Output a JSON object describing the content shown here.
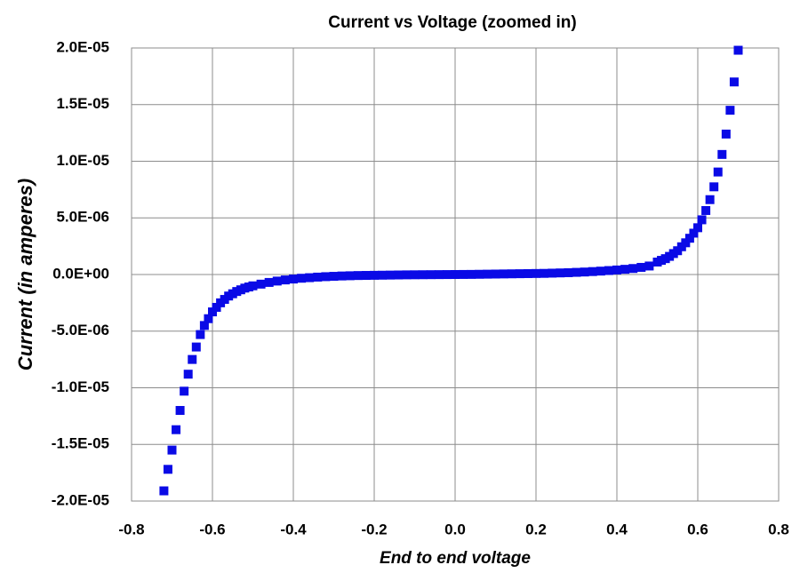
{
  "chart_data": {
    "type": "scatter",
    "title": "Current vs Voltage  (zoomed in)",
    "x_label": "End to end voltage",
    "y_label": "Current  (in amperes)",
    "grid": true,
    "xlim": [
      -0.8,
      0.8
    ],
    "ylim": [
      -2e-05,
      2e-05
    ],
    "xticks": [
      -0.8,
      -0.6,
      -0.4,
      -0.2,
      {
        "value": 0,
        "label": "0.0"
      },
      0.2,
      0.4,
      0.6,
      0.8
    ],
    "yticks": [
      {
        "value": -2e-05,
        "label": "-2.0E-05"
      },
      {
        "value": -1.5e-05,
        "label": "-1.5E-05"
      },
      {
        "value": -1e-05,
        "label": "-1.0E-05"
      },
      {
        "value": -5e-06,
        "label": "-5.0E-06"
      },
      {
        "value": 0,
        "label": "0.0E+00"
      },
      {
        "value": 5e-06,
        "label": "5.0E-06"
      },
      {
        "value": 1e-05,
        "label": "1.0E-05"
      },
      {
        "value": 1.5e-05,
        "label": "1.5E-05"
      },
      {
        "value": 2e-05,
        "label": "2.0E-05"
      }
    ],
    "series": [
      {
        "color": "#0a0ae6",
        "x": [
          -0.72,
          -0.71,
          -0.7,
          -0.69,
          -0.68,
          -0.67,
          -0.66,
          -0.65,
          -0.64,
          -0.63,
          -0.62,
          -0.61,
          -0.6,
          -0.59,
          -0.58,
          -0.57,
          -0.56,
          -0.55,
          -0.54,
          -0.53,
          -0.52,
          -0.51,
          -0.5,
          -0.48,
          -0.46,
          -0.44,
          -0.42,
          -0.4,
          -0.38,
          -0.36,
          -0.34,
          -0.32,
          -0.3,
          -0.28,
          -0.26,
          -0.24,
          -0.22,
          -0.2,
          -0.18,
          -0.16,
          -0.14,
          -0.12,
          -0.1,
          -0.08,
          -0.06,
          -0.04,
          -0.02,
          0,
          0.02,
          0.04,
          0.06,
          0.08,
          0.1,
          0.12,
          0.14,
          0.16,
          0.18,
          0.2,
          0.22,
          0.24,
          0.26,
          0.28,
          0.3,
          0.32,
          0.34,
          0.36,
          0.38,
          0.4,
          0.42,
          0.44,
          0.46,
          0.48,
          0.5,
          0.51,
          0.52,
          0.53,
          0.54,
          0.55,
          0.56,
          0.57,
          0.58,
          0.59,
          0.6,
          0.61,
          0.62,
          0.63,
          0.64,
          0.65,
          0.66,
          0.67,
          0.68,
          0.69,
          0.7
        ],
        "values": [
          -1.91e-05,
          -1.72e-05,
          -1.55e-05,
          -1.37e-05,
          -1.2e-05,
          -1.03e-05,
          -8.8e-06,
          -7.5e-06,
          -6.4e-06,
          -5.3e-06,
          -4.5e-06,
          -3.9e-06,
          -3.3e-06,
          -2.9e-06,
          -2.5e-06,
          -2.2e-06,
          -1.9e-06,
          -1.7e-06,
          -1.5e-06,
          -1.35e-06,
          -1.2e-06,
          -1.1e-06,
          -1e-06,
          -8.5e-07,
          -7e-07,
          -5.8e-07,
          -4.8e-07,
          -4e-07,
          -3.3e-07,
          -2.8e-07,
          -2.3e-07,
          -1.9e-07,
          -1.6e-07,
          -1.3e-07,
          -1.1e-07,
          -9e-08,
          -8e-08,
          -7e-08,
          -6e-08,
          -5e-08,
          -4e-08,
          -3e-08,
          -2.5e-08,
          -2e-08,
          -1.5e-08,
          -1e-08,
          -5e-09,
          0,
          5e-09,
          1e-08,
          2e-08,
          3e-08,
          4e-08,
          5e-08,
          6e-08,
          7e-08,
          8e-08,
          9e-08,
          1e-07,
          1.2e-07,
          1.4e-07,
          1.6e-07,
          1.9e-07,
          2.2e-07,
          2.6e-07,
          3e-07,
          3.5e-07,
          4e-07,
          4.6e-07,
          5.3e-07,
          6.3e-07,
          7.5e-07,
          1.1e-06,
          1.25e-06,
          1.4e-06,
          1.6e-06,
          1.85e-06,
          2.1e-06,
          2.45e-06,
          2.8e-06,
          3.2e-06,
          3.65e-06,
          4.13e-06,
          4.83e-06,
          5.65e-06,
          6.61e-06,
          7.74e-06,
          9.05e-06,
          1.06e-05,
          1.24e-05,
          1.45e-05,
          1.7e-05,
          1.98e-05
        ]
      }
    ]
  }
}
